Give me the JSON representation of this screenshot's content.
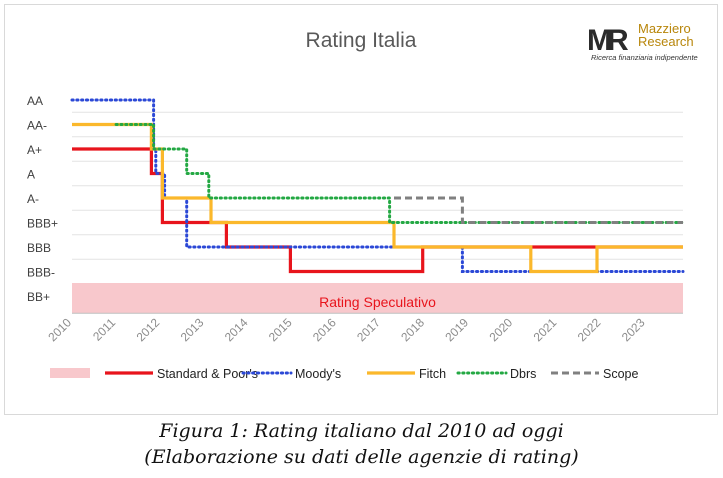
{
  "chart_data": {
    "type": "line",
    "title": "Rating Italia",
    "y_categories": [
      "BB+",
      "BBB-",
      "BBB",
      "BBB+",
      "A-",
      "A",
      "A+",
      "AA-",
      "AA"
    ],
    "x_ticks": [
      "2010",
      "2011",
      "2012",
      "2013",
      "2014",
      "2015",
      "2016",
      "2017",
      "2018",
      "2019",
      "2020",
      "2021",
      "2022",
      "2023"
    ],
    "xlim": [
      2010,
      2023.85
    ],
    "zone": {
      "label": "Rating Speculativo",
      "rating": "BB+",
      "color": "#f8c8cc"
    },
    "series": [
      {
        "name": "Standard & Poor's",
        "color": "#e8141c",
        "dash": "solid",
        "steps": [
          [
            2010,
            "A+"
          ],
          [
            2011.8,
            "A"
          ],
          [
            2012.05,
            "BBB+"
          ],
          [
            2013.5,
            "BBB"
          ],
          [
            2014.95,
            "BBB-"
          ],
          [
            2017.1,
            "BBB-"
          ],
          [
            2017.95,
            "BBB-"
          ],
          [
            2017.95,
            "BBB"
          ],
          [
            2023.85,
            "BBB"
          ]
        ]
      },
      {
        "name": "Moody's",
        "color": "#2b48d6",
        "dash": "dotted",
        "steps": [
          [
            2010,
            "AA"
          ],
          [
            2011.85,
            "A+"
          ],
          [
            2011.9,
            "A"
          ],
          [
            2012.1,
            "A-"
          ],
          [
            2012.6,
            "BBB"
          ],
          [
            2018.85,
            "BBB-"
          ],
          [
            2023.85,
            "BBB-"
          ]
        ]
      },
      {
        "name": "Fitch",
        "color": "#fbb82b",
        "dash": "solid",
        "steps": [
          [
            2010,
            "AA-"
          ],
          [
            2011.8,
            "A+"
          ],
          [
            2012.05,
            "A-"
          ],
          [
            2013.15,
            "BBB+"
          ],
          [
            2017.3,
            "BBB"
          ],
          [
            2020.4,
            "BBB-"
          ],
          [
            2021.9,
            "BBB"
          ],
          [
            2023.85,
            "BBB"
          ]
        ]
      },
      {
        "name": "Dbrs",
        "color": "#23a843",
        "dash": "dotted",
        "steps": [
          [
            2011,
            "AA-"
          ],
          [
            2011.85,
            "A+"
          ],
          [
            2012.6,
            "A"
          ],
          [
            2013.1,
            "A-"
          ],
          [
            2017.2,
            "BBB+"
          ],
          [
            2023.85,
            "BBB+"
          ]
        ]
      },
      {
        "name": "Scope",
        "color": "#808080",
        "dash": "dashed",
        "steps": [
          [
            2017.3,
            "A-"
          ],
          [
            2018.85,
            "BBB+"
          ],
          [
            2023.85,
            "BBB+"
          ]
        ]
      }
    ],
    "legend": [
      "Standard & Poor's",
      "Moody's",
      "Fitch",
      "Dbrs",
      "Scope"
    ],
    "legend_position": "bottom",
    "grid": "horizontal"
  },
  "logo": {
    "text1": "Mazziero",
    "text2": "Research",
    "tagline": "Ricerca finanziaria indipendente"
  },
  "caption": {
    "line1": "Figura 1: Rating italiano dal 2010 ad oggi",
    "line2": "(Elaborazione su dati delle agenzie di rating)"
  }
}
